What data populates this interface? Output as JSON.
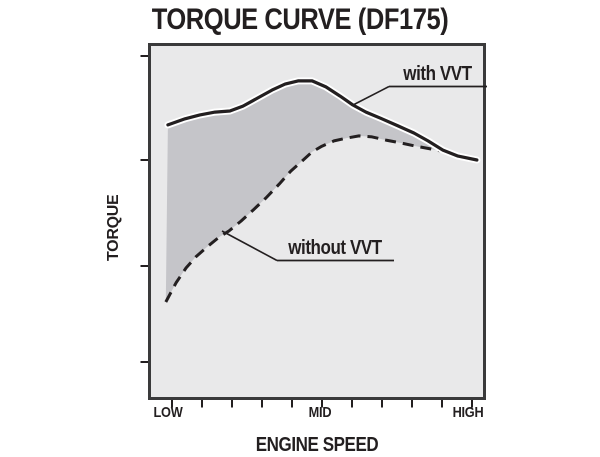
{
  "title": "TORQUE CURVE (DF175)",
  "axes": {
    "y_label": "TORQUE",
    "x_label": "ENGINE SPEED",
    "x_ticks": [
      "LOW",
      "MID",
      "HIGH"
    ]
  },
  "annotations": {
    "with_vvt": "with VVT",
    "without_vvt": "without VVT"
  },
  "colors": {
    "ink": "#231f20",
    "plot_bg": "#e9e9ea",
    "plot_border": "#3a3a3b",
    "fill_between": "#c5c5c9",
    "curve_casing": "#ffffff",
    "page_bg": "#ffffff"
  },
  "chart_data": {
    "type": "line",
    "title": "TORQUE CURVE (DF175)",
    "xlabel": "ENGINE SPEED",
    "ylabel": "TORQUE",
    "x_axis_type": "qualitative",
    "x_tick_labels": [
      "LOW",
      "MID",
      "HIGH"
    ],
    "units": "normalized 0-100 (no numeric scale printed on chart)",
    "legend_position": "inline-callouts",
    "grid": false,
    "shaded_between_series": true,
    "series": [
      {
        "name": "with VVT",
        "style": "solid",
        "points": [
          [
            5.6,
            77.5
          ],
          [
            10.7,
            79.2
          ],
          [
            15.1,
            80.3
          ],
          [
            19.6,
            81.1
          ],
          [
            24.0,
            81.4
          ],
          [
            27.9,
            82.8
          ],
          [
            32.3,
            85.1
          ],
          [
            36.5,
            87.3
          ],
          [
            40.4,
            89.0
          ],
          [
            44.2,
            89.9
          ],
          [
            48.4,
            89.9
          ],
          [
            52.5,
            88.2
          ],
          [
            56.7,
            85.6
          ],
          [
            60.5,
            83.1
          ],
          [
            64.4,
            81.1
          ],
          [
            69.1,
            79.2
          ],
          [
            73.9,
            77.2
          ],
          [
            78.6,
            75.2
          ],
          [
            82.8,
            73.0
          ],
          [
            87.2,
            70.4
          ],
          [
            91.7,
            68.7
          ],
          [
            97.3,
            67.6
          ]
        ]
      },
      {
        "name": "without VVT",
        "style": "dashed",
        "points": [
          [
            5.0,
            27.6
          ],
          [
            8.0,
            33.0
          ],
          [
            11.0,
            37.2
          ],
          [
            13.9,
            40.3
          ],
          [
            17.2,
            43.1
          ],
          [
            20.8,
            45.9
          ],
          [
            23.7,
            47.6
          ],
          [
            27.3,
            50.4
          ],
          [
            30.9,
            53.5
          ],
          [
            34.7,
            56.9
          ],
          [
            38.6,
            60.8
          ],
          [
            42.1,
            64.5
          ],
          [
            45.4,
            67.3
          ],
          [
            48.4,
            69.9
          ],
          [
            51.3,
            71.5
          ],
          [
            54.9,
            73.0
          ],
          [
            58.8,
            73.8
          ],
          [
            62.3,
            74.4
          ],
          [
            66.2,
            74.1
          ],
          [
            70.3,
            73.2
          ],
          [
            74.8,
            72.4
          ],
          [
            79.2,
            71.5
          ],
          [
            83.7,
            70.7
          ],
          [
            88.1,
            69.9
          ],
          [
            92.6,
            68.7
          ],
          [
            97.3,
            67.6
          ]
        ]
      }
    ]
  }
}
